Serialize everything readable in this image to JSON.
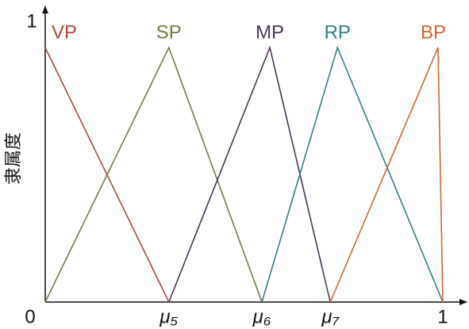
{
  "chart_data": {
    "type": "line",
    "y_label": "隶属度",
    "xlim": [
      0,
      1
    ],
    "ylim": [
      0,
      1
    ],
    "xticks": [
      0,
      {
        "value": 0.311,
        "label": "μ₅"
      },
      {
        "value": 0.545,
        "label": "μ₆"
      },
      {
        "value": 0.717,
        "label": "μ₇"
      },
      1
    ],
    "yticks": [
      1
    ],
    "series": [
      {
        "name": "VP",
        "color": "#b0473c",
        "x": [
          0,
          0.311
        ],
        "values": [
          1,
          0
        ]
      },
      {
        "name": "SP",
        "color": "#6e7f3e",
        "x": [
          0,
          0.311,
          0.545
        ],
        "values": [
          0,
          1,
          0
        ]
      },
      {
        "name": "MP",
        "color": "#4e3356",
        "x": [
          0.311,
          0.565,
          0.717
        ],
        "values": [
          0,
          1,
          0
        ]
      },
      {
        "name": "RP",
        "color": "#2f7f88",
        "x": [
          0.545,
          0.735,
          1
        ],
        "values": [
          0,
          1,
          0
        ]
      },
      {
        "name": "BP",
        "color": "#d2642f",
        "x": [
          0.717,
          0.988,
          1
        ],
        "values": [
          0,
          1,
          0
        ]
      }
    ]
  }
}
